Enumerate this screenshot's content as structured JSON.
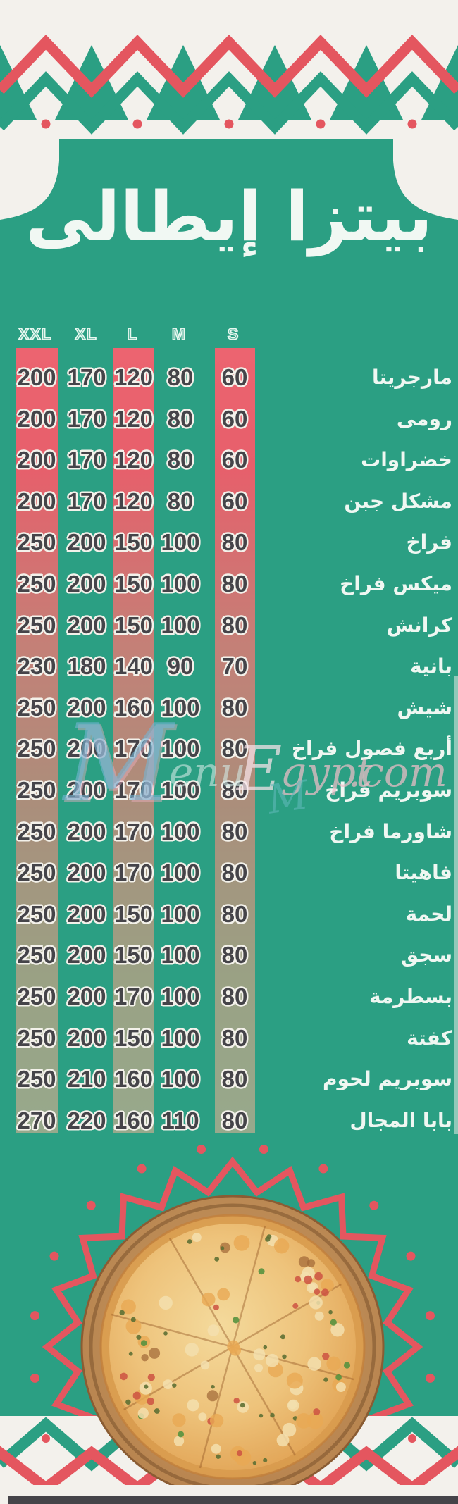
{
  "title": "بيتزا إيطالى",
  "size_headers": [
    "XXL",
    "XL",
    "L",
    "M",
    "S"
  ],
  "items": [
    {
      "name": "مارجريتا",
      "prices": [
        "200",
        "170",
        "120",
        "80",
        "60"
      ]
    },
    {
      "name": "رومى",
      "prices": [
        "200",
        "170",
        "120",
        "80",
        "60"
      ]
    },
    {
      "name": "خضراوات",
      "prices": [
        "200",
        "170",
        "120",
        "80",
        "60"
      ]
    },
    {
      "name": "مشكل جبن",
      "prices": [
        "200",
        "170",
        "120",
        "80",
        "60"
      ]
    },
    {
      "name": "فراخ",
      "prices": [
        "250",
        "200",
        "150",
        "100",
        "80"
      ]
    },
    {
      "name": "ميكس فراخ",
      "prices": [
        "250",
        "200",
        "150",
        "100",
        "80"
      ]
    },
    {
      "name": "كرانش",
      "prices": [
        "250",
        "200",
        "150",
        "100",
        "80"
      ]
    },
    {
      "name": "بانية",
      "prices": [
        "230",
        "180",
        "140",
        "90",
        "70"
      ]
    },
    {
      "name": "شيش",
      "prices": [
        "250",
        "200",
        "160",
        "100",
        "80"
      ]
    },
    {
      "name": "أربع فصول فراخ",
      "prices": [
        "250",
        "200",
        "170",
        "100",
        "80"
      ]
    },
    {
      "name": "سوبريم فراخ",
      "prices": [
        "250",
        "200",
        "170",
        "100",
        "80"
      ]
    },
    {
      "name": "شاورما فراخ",
      "prices": [
        "250",
        "200",
        "170",
        "100",
        "80"
      ]
    },
    {
      "name": "فاهيتا",
      "prices": [
        "250",
        "200",
        "170",
        "100",
        "80"
      ]
    },
    {
      "name": "لحمة",
      "prices": [
        "250",
        "200",
        "150",
        "100",
        "80"
      ]
    },
    {
      "name": "سجق",
      "prices": [
        "250",
        "200",
        "150",
        "100",
        "80"
      ]
    },
    {
      "name": "بسطرمة",
      "prices": [
        "250",
        "200",
        "170",
        "100",
        "80"
      ]
    },
    {
      "name": "كفتة",
      "prices": [
        "250",
        "200",
        "150",
        "100",
        "80"
      ]
    },
    {
      "name": "سوبريم لحوم",
      "prices": [
        "250",
        "210",
        "160",
        "100",
        "80"
      ]
    },
    {
      "name": "بابا المجال",
      "prices": [
        "270",
        "220",
        "160",
        "110",
        "80"
      ]
    }
  ],
  "watermark": {
    "text": "MenuEgypt.com",
    "m": "M",
    "enu": "enu",
    "e": "E",
    "gypt": "gypt",
    "dotcom": ".com",
    "m2": "M"
  },
  "colors": {
    "green": "#2b9f83",
    "red": "#e4565f",
    "stripe_top": "#ec6470",
    "stripe_bottom": "#97a98c",
    "price_text": "#454449",
    "name_text": "#eff7f2",
    "paper": "#f3f1ec",
    "dark_bar": "#454449"
  }
}
